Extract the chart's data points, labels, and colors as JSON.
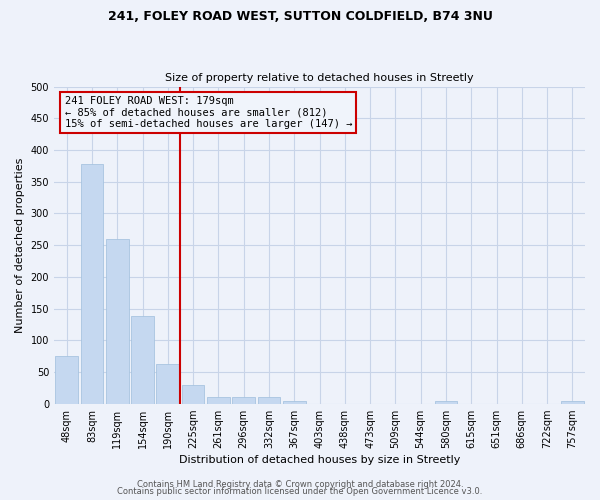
{
  "title1": "241, FOLEY ROAD WEST, SUTTON COLDFIELD, B74 3NU",
  "title2": "Size of property relative to detached houses in Streetly",
  "xlabel": "Distribution of detached houses by size in Streetly",
  "ylabel": "Number of detached properties",
  "bar_values": [
    75,
    378,
    260,
    138,
    62,
    30,
    10,
    10,
    10,
    5,
    0,
    0,
    0,
    0,
    0,
    5,
    0,
    0,
    0,
    0,
    5
  ],
  "bar_labels": [
    "48sqm",
    "83sqm",
    "119sqm",
    "154sqm",
    "190sqm",
    "225sqm",
    "261sqm",
    "296sqm",
    "332sqm",
    "367sqm",
    "403sqm",
    "438sqm",
    "473sqm",
    "509sqm",
    "544sqm",
    "580sqm",
    "615sqm",
    "651sqm",
    "686sqm",
    "722sqm",
    "757sqm"
  ],
  "bar_color": "#c5d8f0",
  "bar_edge_color": "#a8c4e0",
  "vline_x": 4.5,
  "vline_color": "#cc0000",
  "annotation_title": "241 FOLEY ROAD WEST: 179sqm",
  "annotation_line1": "← 85% of detached houses are smaller (812)",
  "annotation_line2": "15% of semi-detached houses are larger (147) →",
  "box_edge_color": "#cc0000",
  "box_face_color": "#f0f4fb",
  "ylim": [
    0,
    500
  ],
  "yticks": [
    0,
    50,
    100,
    150,
    200,
    250,
    300,
    350,
    400,
    450,
    500
  ],
  "footer1": "Contains HM Land Registry data © Crown copyright and database right 2024.",
  "footer2": "Contains public sector information licensed under the Open Government Licence v3.0.",
  "grid_color": "#c8d4e8",
  "background_color": "#eef2fa",
  "title_fontsize": 9,
  "subtitle_fontsize": 8,
  "ylabel_fontsize": 8,
  "xlabel_fontsize": 8,
  "tick_fontsize": 7,
  "footer_fontsize": 6,
  "ann_fontsize": 7.5
}
